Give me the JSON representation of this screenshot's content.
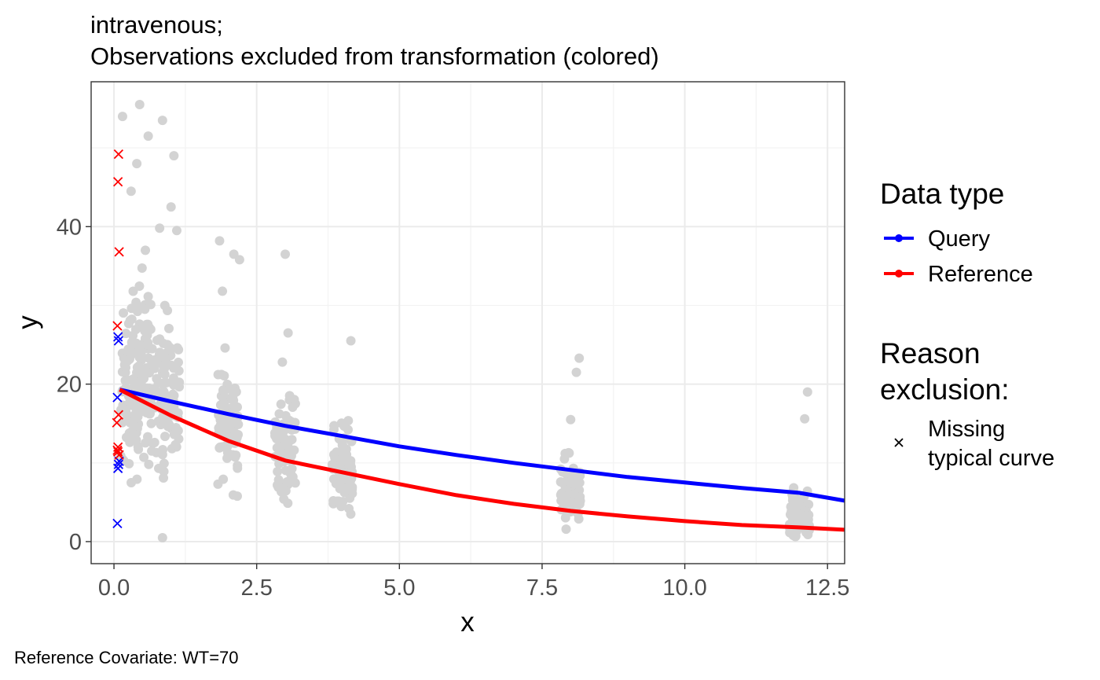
{
  "chart_data": {
    "type": "scatter",
    "title": "intravenous;",
    "subtitle": "Observations excluded from transformation (colored)",
    "xlabel": "x",
    "ylabel": "y",
    "caption": "Reference Covariate: WT=70",
    "xlim": [
      -0.4,
      12.8
    ],
    "ylim": [
      -2.8,
      58.4
    ],
    "x_ticks": [
      0,
      2.5,
      5,
      7.5,
      10,
      12.5
    ],
    "x_tick_labels": [
      "0.0",
      "2.5",
      "5.0",
      "7.5",
      "10.0",
      "12.5"
    ],
    "y_ticks": [
      0,
      20,
      40
    ],
    "y_tick_labels": [
      "0",
      "20",
      "40"
    ],
    "grid": true,
    "legend_position": "right",
    "legend_data_type": {
      "title": "Data type",
      "entries": [
        {
          "label": "Query",
          "color": "#0000ff"
        },
        {
          "label": "Reference",
          "color": "#ff0000"
        }
      ]
    },
    "legend_reason": {
      "title_line1": "Reason",
      "title_line2": "exclusion:",
      "entries": [
        {
          "label_line1": "Missing",
          "label_line2": "typical curve",
          "shape": "x"
        }
      ]
    },
    "series": [
      {
        "name": "Query",
        "type": "line",
        "color": "#0000ff",
        "x": [
          0.1,
          1,
          2,
          3,
          4,
          5,
          6,
          7,
          8,
          9,
          10,
          11,
          12,
          12.8
        ],
        "y": [
          19.3,
          17.8,
          16.2,
          14.7,
          13.4,
          12.1,
          11.0,
          10.0,
          9.1,
          8.2,
          7.5,
          6.8,
          6.2,
          5.2
        ]
      },
      {
        "name": "Reference",
        "type": "line",
        "color": "#ff0000",
        "x": [
          0.1,
          1,
          2,
          3,
          4,
          5,
          6,
          7,
          8,
          9,
          10,
          11,
          12,
          12.8
        ],
        "y": [
          19.3,
          16.0,
          12.8,
          10.3,
          8.8,
          7.3,
          5.9,
          4.8,
          3.9,
          3.2,
          2.6,
          2.1,
          1.8,
          1.5
        ]
      },
      {
        "name": "Query",
        "type": "excluded",
        "shape": "x",
        "color": "#0000ff",
        "x": [
          0.07,
          0.08,
          0.06,
          0.07,
          0.09,
          0.06,
          0.08
        ],
        "y": [
          26.0,
          25.5,
          18.3,
          9.3,
          10.2,
          2.3,
          9.8
        ]
      },
      {
        "name": "Reference",
        "type": "excluded",
        "shape": "x",
        "color": "#ff0000",
        "x": [
          0.08,
          0.07,
          0.09,
          0.06,
          0.08,
          0.05,
          0.07,
          0.06,
          0.09,
          0.07
        ],
        "y": [
          49.2,
          45.7,
          36.8,
          27.4,
          16.1,
          15.1,
          12.0,
          11.6,
          11.0,
          11.4
        ]
      }
    ],
    "observations": {
      "color": "#d3d3d3",
      "clusters": [
        {
          "x": 0.2,
          "spread": 0.1,
          "center": 18,
          "sd": 8,
          "count": 40
        },
        {
          "x": 0.35,
          "spread": 0.1,
          "center": 20,
          "sd": 9,
          "count": 55
        },
        {
          "x": 0.5,
          "spread": 0.12,
          "center": 22,
          "sd": 9,
          "count": 60
        },
        {
          "x": 0.75,
          "spread": 0.15,
          "center": 20,
          "sd": 8,
          "count": 55
        },
        {
          "x": 1.0,
          "spread": 0.15,
          "center": 19,
          "sd": 8,
          "count": 60
        },
        {
          "x": 2.0,
          "spread": 0.18,
          "center": 15,
          "sd": 6,
          "count": 80
        },
        {
          "x": 3.0,
          "spread": 0.18,
          "center": 12,
          "sd": 5.5,
          "count": 80
        },
        {
          "x": 4.0,
          "spread": 0.18,
          "center": 9,
          "sd": 4.5,
          "count": 80
        },
        {
          "x": 8.0,
          "spread": 0.18,
          "center": 6,
          "sd": 3.5,
          "count": 75
        },
        {
          "x": 12.0,
          "spread": 0.18,
          "center": 3.5,
          "sd": 2.5,
          "count": 75
        }
      ],
      "outliers": {
        "x": [
          0.15,
          0.45,
          0.85,
          0.6,
          0.4,
          1.05,
          0.3,
          0.8,
          1.1,
          1.85,
          2.1,
          2.2,
          1.9,
          3.0,
          3.05,
          2.95,
          4.15,
          8.15,
          8.1,
          8.0,
          12.15,
          12.1,
          0.85,
          1.0,
          0.55
        ],
        "y": [
          54.0,
          55.5,
          53.5,
          51.5,
          48.0,
          49.0,
          44.5,
          39.8,
          39.5,
          38.2,
          36.5,
          35.8,
          31.8,
          36.5,
          26.5,
          22.8,
          25.5,
          23.3,
          21.5,
          15.5,
          19.0,
          15.6,
          0.5,
          42.5,
          37.0
        ]
      }
    }
  }
}
